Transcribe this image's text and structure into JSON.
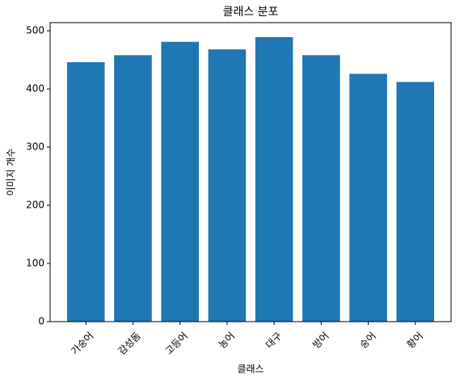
{
  "chart_data": {
    "type": "bar",
    "title": "클래스 분포",
    "x_label": "클래스",
    "y_label": "이미지 개수",
    "categories": [
      "가숭어",
      "감성돔",
      "고등어",
      "농어",
      "대구",
      "방어",
      "숭어",
      "황어"
    ],
    "values": [
      446,
      458,
      481,
      468,
      489,
      458,
      426,
      412
    ],
    "color": "#1f77b4",
    "ylim": [
      0,
      514
    ],
    "yticks": [
      0,
      100,
      200,
      300,
      400,
      500
    ],
    "grid": false
  }
}
